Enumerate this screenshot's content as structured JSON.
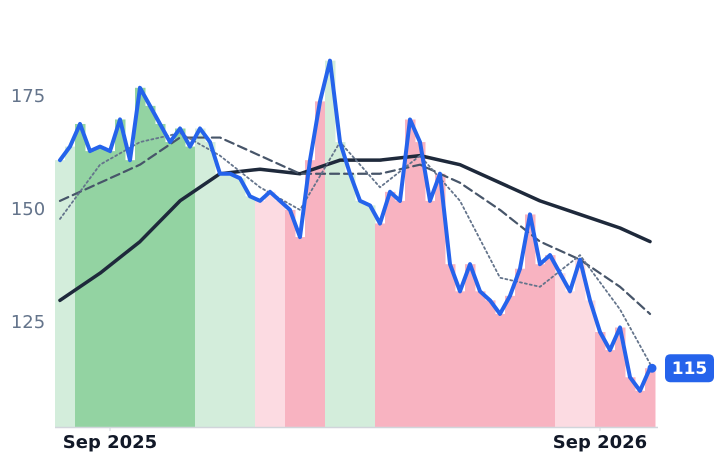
{
  "chart_data": {
    "type": "line",
    "ylim": [
      102,
      190
    ],
    "yticks": [
      125,
      150,
      175
    ],
    "xlim": [
      0,
      59
    ],
    "xticks": [
      {
        "value": 5,
        "label": "Sep 2025"
      },
      {
        "value": 54,
        "label": "Sep 2026"
      }
    ],
    "grid": false,
    "band_colors": [
      "#d3eddb",
      "#d3eddb",
      "#93d3a2",
      "#93d3a2",
      "#93d3a2",
      "#93d3a2",
      "#93d3a2",
      "#93d3a2",
      "#93d3a2",
      "#93d3a2",
      "#93d3a2",
      "#93d3a2",
      "#93d3a2",
      "#93d3a2",
      "#d3eddb",
      "#d3eddb",
      "#d3eddb",
      "#d3eddb",
      "#d3eddb",
      "#d3eddb",
      "#fcdbe2",
      "#fcdbe2",
      "#fcdbe2",
      "#f8b3c1",
      "#f8b3c1",
      "#f8b3c1",
      "#f8b3c1",
      "#d3eddb",
      "#d3eddb",
      "#d3eddb",
      "#d3eddb",
      "#d3eddb",
      "#f8b3c1",
      "#f8b3c1",
      "#f8b3c1",
      "#f8b3c1",
      "#f8b3c1",
      "#f8b3c1",
      "#f8b3c1",
      "#f8b3c1",
      "#f8b3c1",
      "#f8b3c1",
      "#f8b3c1",
      "#f8b3c1",
      "#f8b3c1",
      "#f8b3c1",
      "#f8b3c1",
      "#f8b3c1",
      "#f8b3c1",
      "#f8b3c1",
      "#fcdbe2",
      "#fcdbe2",
      "#fcdbe2",
      "#fcdbe2",
      "#f8b3c1",
      "#f8b3c1",
      "#f8b3c1",
      "#f8b3c1",
      "#f8b3c1",
      "#f8b3c1"
    ],
    "series": [
      {
        "color": "#1e293b",
        "style": "solid",
        "width": 3.5,
        "x": [
          0,
          4,
          8,
          12,
          16,
          20,
          24,
          28,
          32,
          36,
          40,
          44,
          48,
          52,
          56,
          59
        ],
        "values": [
          130,
          136,
          143,
          152,
          158,
          159,
          158,
          161,
          161,
          162,
          160,
          156,
          152,
          149,
          146,
          143
        ]
      },
      {
        "color": "#475569",
        "style": "dashed",
        "width": 2.2,
        "x": [
          0,
          4,
          8,
          12,
          16,
          20,
          24,
          28,
          32,
          36,
          40,
          44,
          48,
          52,
          56,
          59
        ],
        "values": [
          152,
          156,
          160,
          166,
          166,
          162,
          158,
          158,
          158,
          160,
          156,
          150,
          143,
          139,
          133,
          127
        ]
      },
      {
        "color": "#64748b",
        "style": "dotted",
        "width": 1.8,
        "x": [
          0,
          4,
          8,
          12,
          16,
          20,
          24,
          28,
          32,
          36,
          40,
          44,
          48,
          52,
          56,
          59
        ],
        "values": [
          148,
          160,
          165,
          167,
          162,
          155,
          150,
          165,
          155,
          162,
          152,
          135,
          133,
          140,
          128,
          116
        ]
      },
      {
        "color": "#2563eb",
        "style": "solid",
        "width": 4,
        "x": [
          0,
          1,
          2,
          3,
          4,
          5,
          6,
          7,
          8,
          9,
          10,
          11,
          12,
          13,
          14,
          15,
          16,
          17,
          18,
          19,
          20,
          21,
          22,
          23,
          24,
          25,
          26,
          27,
          28,
          29,
          30,
          31,
          32,
          33,
          34,
          35,
          36,
          37,
          38,
          39,
          40,
          41,
          42,
          43,
          44,
          45,
          46,
          47,
          48,
          49,
          50,
          51,
          52,
          53,
          54,
          55,
          56,
          57,
          58,
          59
        ],
        "values": [
          161,
          164,
          169,
          163,
          164,
          163,
          170,
          161,
          177,
          173,
          169,
          165,
          168,
          164,
          168,
          165,
          158,
          158,
          157,
          153,
          152,
          154,
          152,
          150,
          144,
          161,
          174,
          183,
          165,
          158,
          152,
          151,
          147,
          154,
          152,
          170,
          165,
          152,
          158,
          138,
          132,
          138,
          132,
          130,
          127,
          131,
          137,
          149,
          138,
          140,
          136,
          132,
          139,
          130,
          123,
          119,
          124,
          113,
          110,
          115
        ]
      }
    ]
  }
}
